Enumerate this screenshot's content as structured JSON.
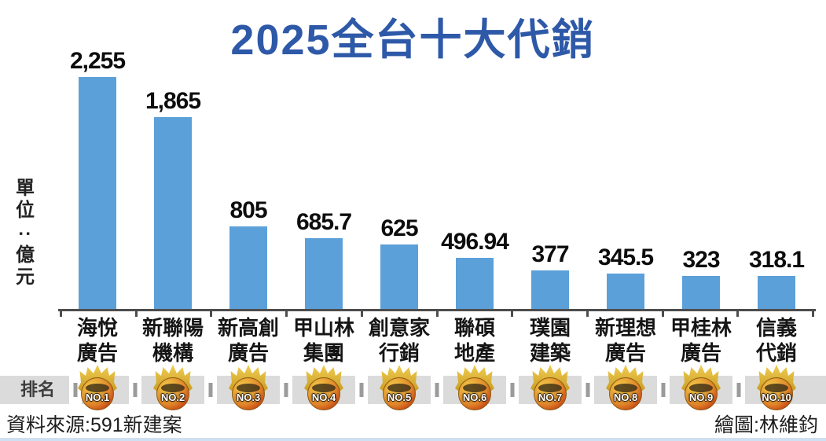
{
  "title": "2025全台十大代銷",
  "unit_label": {
    "full": "單位:億元",
    "chars": [
      "單",
      "位",
      ":",
      "億",
      "元"
    ]
  },
  "chart_data": {
    "type": "bar",
    "title": "2025全台十大代銷",
    "ylabel": "單位:億元",
    "categories": [
      "海悅廣告",
      "新聯陽機構",
      "新高創廣告",
      "甲山林集團",
      "創意家行銷",
      "聯碩地產",
      "璞園建築",
      "新理想廣告",
      "甲桂林廣告",
      "信義代銷"
    ],
    "categories_lines": [
      [
        "海悅",
        "廣告"
      ],
      [
        "新聯陽",
        "機構"
      ],
      [
        "新高創",
        "廣告"
      ],
      [
        "甲山林",
        "集團"
      ],
      [
        "創意家",
        "行銷"
      ],
      [
        "聯碩",
        "地產"
      ],
      [
        "璞園",
        "建築"
      ],
      [
        "新理想",
        "廣告"
      ],
      [
        "甲桂林",
        "廣告"
      ],
      [
        "信義",
        "代銷"
      ]
    ],
    "values": [
      2255,
      1865,
      805,
      685.7,
      625,
      496.94,
      377,
      345.5,
      323,
      318.1
    ],
    "value_labels": [
      "2,255",
      "1,865",
      "805",
      "685.7",
      "625",
      "496.94",
      "377",
      "345.5",
      "323",
      "318.1"
    ],
    "ylim": [
      0,
      2255
    ],
    "grid": false,
    "legend": "none",
    "bar_color": "#5ba0d9"
  },
  "rank_row": {
    "label": "排名",
    "badges": [
      "NO.1",
      "NO.2",
      "NO.3",
      "NO.4",
      "NO.5",
      "NO.6",
      "NO.7",
      "NO.8",
      "NO.9",
      "NO.10"
    ]
  },
  "footer": {
    "source": "資料來源:591新建案",
    "credit": "繪圖:林維鈞"
  },
  "colors": {
    "title": "#2e59a8",
    "bar": "#5ba0d9",
    "axis": "#4d4d4d",
    "strip": "#dbdbdb",
    "badge_gold": "#d9a62a",
    "badge_red": "#c53a12",
    "bottom_accent": "#cfe0f2"
  }
}
